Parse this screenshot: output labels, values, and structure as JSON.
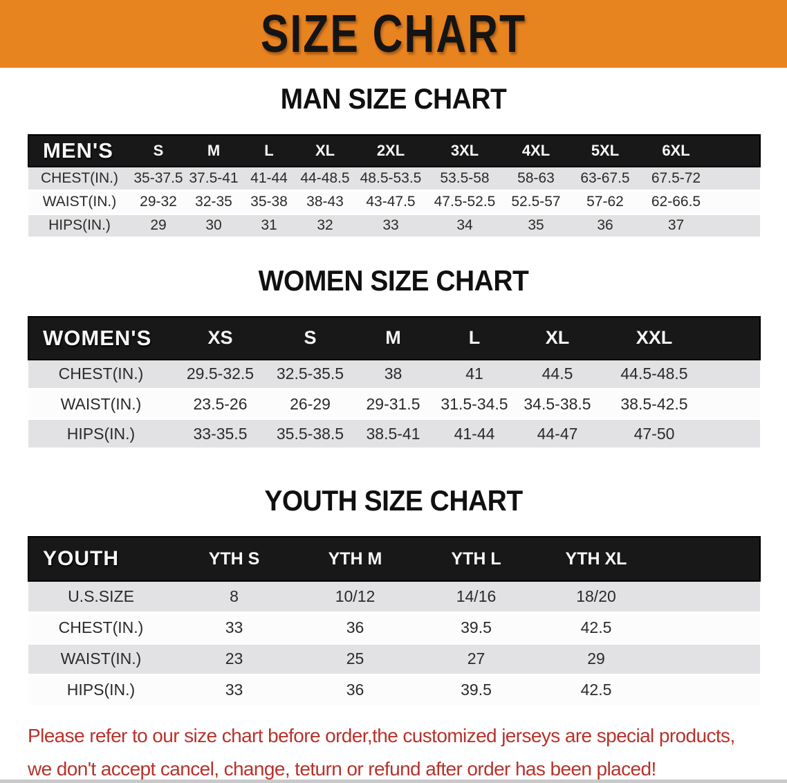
{
  "banner": {
    "title": "SIZE CHART"
  },
  "sections": [
    {
      "heading": "MAN SIZE CHART",
      "table": {
        "label": "MEN'S",
        "columns": [
          "S",
          "M",
          "L",
          "XL",
          "2XL",
          "3XL",
          "4XL",
          "5XL",
          "6XL"
        ],
        "rows": [
          {
            "label": "CHEST(IN.)",
            "values": [
              "35-37.5",
              "37.5-41",
              "41-44",
              "44-48.5",
              "48.5-53.5",
              "53.5-58",
              "58-63",
              "63-67.5",
              "67.5-72"
            ]
          },
          {
            "label": "WAIST(IN.)",
            "values": [
              "29-32",
              "32-35",
              "35-38",
              "38-43",
              "43-47.5",
              "47.5-52.5",
              "52.5-57",
              "57-62",
              "62-66.5"
            ]
          },
          {
            "label": "HIPS(IN.)",
            "values": [
              "29",
              "30",
              "31",
              "32",
              "33",
              "34",
              "35",
              "36",
              "37"
            ]
          }
        ]
      }
    },
    {
      "heading": "WOMEN SIZE CHART",
      "table": {
        "label": "WOMEN'S",
        "columns": [
          "XS",
          "S",
          "M",
          "L",
          "XL",
          "XXL"
        ],
        "rows": [
          {
            "label": "CHEST(IN.)",
            "values": [
              "29.5-32.5",
              "32.5-35.5",
              "38",
              "41",
              "44.5",
              "44.5-48.5"
            ]
          },
          {
            "label": "WAIST(IN.)",
            "values": [
              "23.5-26",
              "26-29",
              "29-31.5",
              "31.5-34.5",
              "34.5-38.5",
              "38.5-42.5"
            ]
          },
          {
            "label": "HIPS(IN.)",
            "values": [
              "33-35.5",
              "35.5-38.5",
              "38.5-41",
              "41-44",
              "44-47",
              "47-50"
            ]
          }
        ]
      }
    },
    {
      "heading": "YOUTH SIZE CHART",
      "table": {
        "label": "YOUTH",
        "columns": [
          "YTH S",
          "YTH M",
          "YTH L",
          "YTH XL"
        ],
        "rows": [
          {
            "label": "U.S.SIZE",
            "values": [
              "8",
              "10/12",
              "14/16",
              "18/20"
            ]
          },
          {
            "label": "CHEST(IN.)",
            "values": [
              "33",
              "36",
              "39.5",
              "42.5"
            ]
          },
          {
            "label": "WAIST(IN.)",
            "values": [
              "23",
              "25",
              "27",
              "29"
            ]
          },
          {
            "label": "HIPS(IN.)",
            "values": [
              "33",
              "36",
              "39.5",
              "42.5"
            ]
          }
        ]
      }
    }
  ],
  "footer": {
    "line1": "Please refer to our size chart before order,the customized jerseys are special products,",
    "line2": "we don't accept cancel, change, teturn or refund after order has been placed!"
  },
  "colors": {
    "banner_bg": "#E78420",
    "header_bar": "#181818",
    "row_stripe_gray": "#E2E2E4",
    "footer_text_red": "#B8322B"
  }
}
